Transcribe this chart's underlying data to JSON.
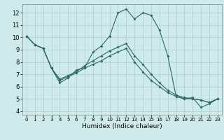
{
  "xlabel": "Humidex (Indice chaleur)",
  "background_color": "#ceeaea",
  "grid_color": "#aacccc",
  "line_color": "#2a6b5e",
  "xlim": [
    -0.5,
    23.5
  ],
  "ylim": [
    3.7,
    12.7
  ],
  "xticks": [
    0,
    1,
    2,
    3,
    4,
    5,
    6,
    7,
    8,
    9,
    10,
    11,
    12,
    13,
    14,
    15,
    16,
    17,
    18,
    19,
    20,
    21,
    22,
    23
  ],
  "yticks": [
    4,
    5,
    6,
    7,
    8,
    9,
    10,
    11,
    12
  ],
  "line1_x": [
    0,
    1,
    2,
    3,
    4,
    5,
    6,
    7,
    8,
    9,
    10,
    11,
    12,
    13,
    14,
    15,
    16,
    17,
    18,
    19,
    20,
    21,
    22,
    23
  ],
  "line1_y": [
    10.1,
    9.4,
    9.1,
    7.5,
    6.3,
    6.7,
    7.35,
    7.55,
    8.8,
    9.3,
    10.1,
    12.0,
    12.3,
    11.5,
    12.0,
    11.8,
    10.6,
    8.5,
    5.2,
    5.0,
    5.1,
    4.3,
    4.6,
    5.0
  ],
  "line2_x": [
    0,
    1,
    2,
    3,
    4,
    5,
    6,
    7,
    8,
    9,
    10,
    11,
    12,
    13,
    14,
    15,
    16,
    17,
    18,
    19,
    20,
    21,
    22,
    23
  ],
  "line2_y": [
    10.1,
    9.4,
    9.1,
    7.5,
    6.5,
    6.8,
    7.1,
    7.5,
    7.8,
    8.1,
    8.5,
    8.8,
    9.1,
    8.0,
    7.2,
    6.5,
    6.0,
    5.5,
    5.2,
    5.0,
    5.0,
    4.9,
    4.7,
    5.0
  ],
  "line3_x": [
    0,
    1,
    2,
    3,
    4,
    5,
    6,
    7,
    8,
    9,
    10,
    11,
    12,
    13,
    14,
    15,
    16,
    17,
    18,
    19,
    20,
    21,
    22,
    23
  ],
  "line3_y": [
    10.1,
    9.4,
    9.1,
    7.5,
    6.6,
    6.9,
    7.2,
    7.7,
    8.1,
    8.5,
    8.9,
    9.2,
    9.5,
    8.5,
    7.8,
    7.0,
    6.3,
    5.7,
    5.3,
    5.1,
    5.0,
    4.9,
    4.7,
    5.0
  ]
}
